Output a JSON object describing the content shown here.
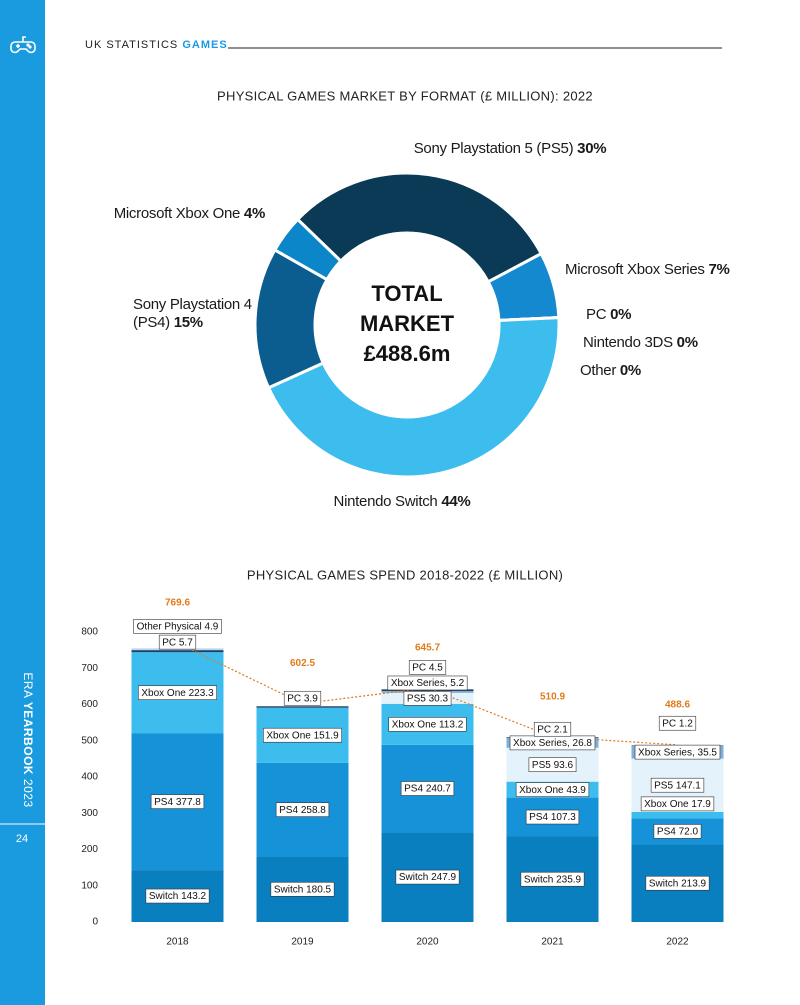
{
  "header": {
    "section": "UK STATISTICS",
    "topic": "GAMES"
  },
  "sidebar": {
    "brand": "ERA",
    "publication": "YEARBOOK",
    "year": "2023",
    "page": "24"
  },
  "chart_data": [
    {
      "type": "donut",
      "title": "PHYSICAL GAMES MARKET BY FORMAT (£ MILLION): 2022",
      "center_text": [
        "TOTAL",
        "MARKET",
        "£488.6m"
      ],
      "categories": [
        "Sony Playstation 5 (PS5)",
        "Microsoft Xbox Series",
        "PC",
        "Nintendo 3DS",
        "Other",
        "Nintendo Switch",
        "Sony Playstation 4 (PS4)",
        "Microsoft Xbox One"
      ],
      "values": [
        30,
        7,
        0,
        0,
        0,
        44,
        15,
        4
      ],
      "value_labels": [
        "30%",
        "7%",
        "0%",
        "0%",
        "0%",
        "44%",
        "15%",
        "4%"
      ],
      "colors": [
        "#0b3a56",
        "#1589cf",
        "#cfe8f5",
        "#9fd3ef",
        "#e8f4fb",
        "#3dbdee",
        "#0c5d8f",
        "#0b86c9"
      ]
    },
    {
      "type": "stacked-bar",
      "title": "PHYSICAL GAMES SPEND 2018-2022 (£ MILLION)",
      "categories": [
        "2018",
        "2019",
        "2020",
        "2021",
        "2022"
      ],
      "ylim": [
        0,
        800
      ],
      "yticks": [
        0,
        100,
        200,
        300,
        400,
        500,
        600,
        700,
        800
      ],
      "grid": false,
      "series": [
        {
          "color": "#0a7fc0",
          "values": [
            143.2,
            180.5,
            247.9,
            235.9,
            213.9
          ],
          "value_labels": [
            "Switch 143.2",
            "Switch 180.5",
            "Switch 247.9",
            "Switch 235.9",
            "Switch 213.9"
          ]
        },
        {
          "color": "#1592d8",
          "values": [
            377.8,
            258.8,
            240.7,
            107.3,
            72.0
          ],
          "value_labels": [
            "PS4 377.8",
            "PS4 258.8",
            "PS4 240.7",
            "PS4 107.3",
            "PS4 72.0"
          ]
        },
        {
          "color": "#3dbdee",
          "values": [
            223.3,
            151.9,
            113.2,
            43.9,
            17.9
          ],
          "value_labels": [
            "Xbox One 223.3",
            "Xbox One 151.9",
            "Xbox One 113.2",
            "Xbox One 43.9",
            "Xbox One 17.9"
          ]
        },
        {
          "color": "#e3f2fb",
          "values": [
            null,
            null,
            30.3,
            93.6,
            147.1
          ],
          "value_labels": [
            null,
            null,
            "PS5 30.3",
            "PS5 93.6",
            "PS5 147.1"
          ]
        },
        {
          "color": "#7faed6",
          "values": [
            null,
            null,
            5.2,
            26.8,
            35.5
          ],
          "value_labels": [
            null,
            null,
            "Xbox Series, 5.2",
            "Xbox Series, 26.8",
            "Xbox Series, 35.5"
          ]
        },
        {
          "color": "#1f3f66",
          "values": [
            5.7,
            3.9,
            4.5,
            2.1,
            1.2
          ],
          "value_labels": [
            "PC 5.7",
            "PC 3.9",
            "PC 4.5",
            "PC 2.1",
            "PC 1.2"
          ]
        },
        {
          "color": "#b6d7ee",
          "values": [
            4.9,
            null,
            null,
            null,
            null
          ],
          "value_labels": [
            "Other Physical 4.9",
            null,
            null,
            null,
            null
          ]
        }
      ],
      "line": {
        "color": "#e07b1a",
        "values": [
          769.6,
          602.5,
          645.7,
          510.9,
          488.6
        ]
      }
    }
  ]
}
